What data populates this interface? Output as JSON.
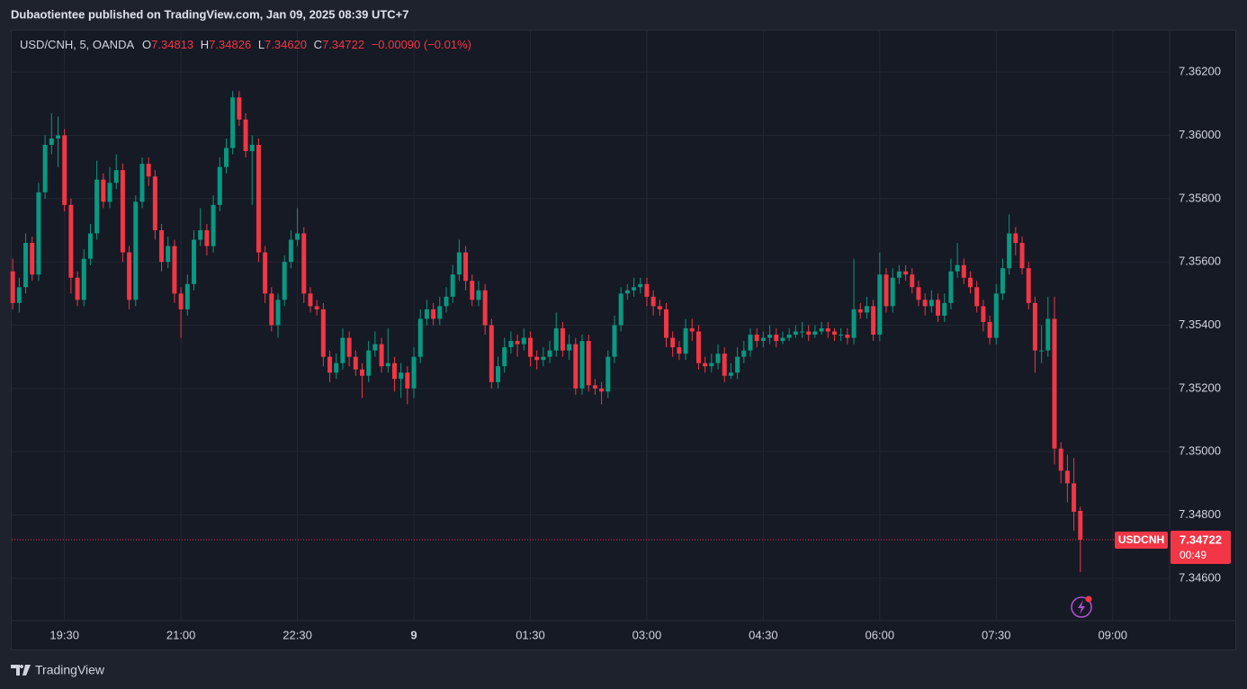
{
  "header": {
    "publisher_line": "Dubaotientee published on TradingView.com, Jan 09, 2025 08:39 UTC+7",
    "symbol": "USD/CNH, 5, OANDA",
    "ohlc_letters": [
      "O",
      "H",
      "L",
      "C"
    ],
    "ohlc_values": [
      "7.34813",
      "7.34826",
      "7.34620",
      "7.34722"
    ],
    "change": "−0.00090 (−0.01%)"
  },
  "price_tag": {
    "symbol": "USDCNH",
    "countdown": "00:49"
  },
  "footer": {
    "brand": "TradingView"
  },
  "chart_data": {
    "type": "candlestick",
    "up_color": "#089981",
    "down_color": "#f23645",
    "grid": true,
    "ylim": [
      7.34466,
      7.36334
    ],
    "yticks": [
      {
        "value": 7.346,
        "label": "7.34600"
      },
      {
        "value": 7.348,
        "label": "7.34800"
      },
      {
        "value": 7.35,
        "label": "7.35000"
      },
      {
        "value": 7.352,
        "label": "7.35200"
      },
      {
        "value": 7.354,
        "label": "7.35400"
      },
      {
        "value": 7.356,
        "label": "7.35600"
      },
      {
        "value": 7.358,
        "label": "7.35800"
      },
      {
        "value": 7.36,
        "label": "7.36000"
      },
      {
        "value": 7.362,
        "label": "7.36200"
      }
    ],
    "xlim": [
      -0.3,
      178.8
    ],
    "xticks": [
      {
        "value": 8,
        "label": "19:30"
      },
      {
        "value": 26,
        "label": "21:00"
      },
      {
        "value": 44,
        "label": "22:30"
      },
      {
        "value": 62,
        "label": "9"
      },
      {
        "value": 80,
        "label": "01:30"
      },
      {
        "value": 98,
        "label": "03:00"
      },
      {
        "value": 116,
        "label": "04:30"
      },
      {
        "value": 134,
        "label": "06:00"
      },
      {
        "value": 152,
        "label": "07:30"
      },
      {
        "value": 170,
        "label": "09:00"
      }
    ],
    "x": [
      0,
      1,
      2,
      3,
      4,
      5,
      6,
      7,
      8,
      9,
      10,
      11,
      12,
      13,
      14,
      15,
      16,
      17,
      18,
      19,
      20,
      21,
      22,
      23,
      24,
      25,
      26,
      27,
      28,
      29,
      30,
      31,
      32,
      33,
      34,
      35,
      36,
      37,
      38,
      39,
      40,
      41,
      42,
      43,
      44,
      45,
      46,
      47,
      48,
      49,
      50,
      51,
      52,
      53,
      54,
      55,
      56,
      57,
      58,
      59,
      60,
      61,
      62,
      63,
      64,
      65,
      66,
      67,
      68,
      69,
      70,
      71,
      72,
      73,
      74,
      75,
      76,
      77,
      78,
      79,
      80,
      81,
      82,
      83,
      84,
      85,
      86,
      87,
      88,
      89,
      90,
      91,
      92,
      93,
      94,
      95,
      96,
      97,
      98,
      99,
      100,
      101,
      102,
      103,
      104,
      105,
      106,
      107,
      108,
      109,
      110,
      111,
      112,
      113,
      114,
      115,
      116,
      117,
      118,
      119,
      120,
      121,
      122,
      123,
      124,
      125,
      126,
      127,
      128,
      129,
      130,
      131,
      132,
      133,
      134,
      135,
      136,
      137,
      138,
      139,
      140,
      141,
      142,
      143,
      144,
      145,
      146,
      147,
      148,
      149,
      150,
      151,
      152,
      153,
      154,
      155,
      156,
      157,
      158,
      159,
      160,
      161,
      162,
      163,
      164,
      165
    ],
    "open": [
      7.3557,
      7.3547,
      7.3552,
      7.3566,
      7.3556,
      7.3582,
      7.3597,
      7.3599,
      7.36,
      7.3578,
      7.3555,
      7.3548,
      7.3561,
      7.3569,
      7.3586,
      7.3579,
      7.3585,
      7.3589,
      7.3563,
      7.3548,
      7.3579,
      7.3591,
      7.3587,
      7.357,
      7.356,
      7.3565,
      7.355,
      7.3545,
      7.3553,
      7.3567,
      7.357,
      7.3565,
      7.3578,
      7.359,
      7.3596,
      7.3612,
      7.3605,
      7.3595,
      7.3597,
      7.3563,
      7.355,
      7.354,
      7.3548,
      7.356,
      7.3567,
      7.3569,
      7.355,
      7.3546,
      7.3545,
      7.353,
      7.3525,
      7.3528,
      7.3536,
      7.353,
      7.3526,
      7.3524,
      7.3532,
      7.3534,
      7.3527,
      7.3528,
      7.3523,
      7.3525,
      7.352,
      7.353,
      7.3542,
      7.3545,
      7.3542,
      7.3546,
      7.3549,
      7.3556,
      7.3563,
      7.3554,
      7.3548,
      7.3551,
      7.354,
      7.3522,
      7.3527,
      7.3533,
      7.3535,
      7.3534,
      7.3536,
      7.353,
      7.3529,
      7.353,
      7.3532,
      7.3539,
      7.3532,
      7.3534,
      7.352,
      7.3535,
      7.3521,
      7.352,
      7.3519,
      7.353,
      7.354,
      7.355,
      7.3551,
      7.3552,
      7.3553,
      7.3549,
      7.3546,
      7.3545,
      7.3536,
      7.3533,
      7.3531,
      7.3539,
      7.3538,
      7.3528,
      7.3527,
      7.3528,
      7.3531,
      7.3524,
      7.3525,
      7.353,
      7.3532,
      7.3537,
      7.3535,
      7.3536,
      7.3537,
      7.3535,
      7.3536,
      7.3537,
      7.3538,
      7.3538,
      7.3537,
      7.3538,
      7.3539,
      7.3538,
      7.3537,
      7.3537,
      7.3536,
      7.3545,
      7.3544,
      7.3546,
      7.3537,
      7.3556,
      7.3546,
      7.3555,
      7.3557,
      7.3556,
      7.3552,
      7.3548,
      7.3546,
      7.3548,
      7.3543,
      7.3547,
      7.3557,
      7.3559,
      7.3555,
      7.3552,
      7.3546,
      7.3541,
      7.3536,
      7.355,
      7.3558,
      7.3569,
      7.3566,
      7.3558,
      7.3547,
      7.3532,
      7.3532,
      7.3542,
      7.3501,
      7.3494,
      7.349,
      7.34813
    ],
    "high": [
      7.3561,
      7.3555,
      7.3569,
      7.3568,
      7.3585,
      7.36,
      7.3607,
      7.3606,
      7.3602,
      7.358,
      7.3557,
      7.3564,
      7.3572,
      7.3592,
      7.3588,
      7.359,
      7.3594,
      7.3591,
      7.3565,
      7.3581,
      7.3593,
      7.3593,
      7.3589,
      7.3572,
      7.3568,
      7.3567,
      7.3552,
      7.3556,
      7.357,
      7.3577,
      7.3572,
      7.3581,
      7.3593,
      7.3599,
      7.3614,
      7.3614,
      7.3607,
      7.36,
      7.3599,
      7.3565,
      7.3552,
      7.355,
      7.3562,
      7.357,
      7.3577,
      7.3571,
      7.3552,
      7.3548,
      7.3547,
      7.3532,
      7.3531,
      7.3539,
      7.3538,
      7.3532,
      7.3528,
      7.3535,
      7.3538,
      7.3536,
      7.3539,
      7.353,
      7.3528,
      7.3527,
      7.3533,
      7.3545,
      7.3548,
      7.3547,
      7.3549,
      7.3552,
      7.3559,
      7.3567,
      7.3565,
      7.3556,
      7.3554,
      7.3553,
      7.3542,
      7.353,
      7.3536,
      7.3538,
      7.3537,
      7.3539,
      7.3538,
      7.3532,
      7.3533,
      7.3535,
      7.3544,
      7.3541,
      7.3537,
      7.3536,
      7.3537,
      7.3537,
      7.3523,
      7.3522,
      7.3532,
      7.3543,
      7.3552,
      7.3553,
      7.3555,
      7.3555,
      7.3555,
      7.3551,
      7.3548,
      7.3547,
      7.3538,
      7.3535,
      7.3542,
      7.3542,
      7.354,
      7.353,
      7.3531,
      7.3534,
      7.3533,
      7.3528,
      7.3533,
      7.3535,
      7.3539,
      7.3539,
      7.3538,
      7.354,
      7.3539,
      7.3538,
      7.3539,
      7.354,
      7.3541,
      7.354,
      7.354,
      7.3541,
      7.3541,
      7.3539,
      7.3539,
      7.3539,
      7.3561,
      7.3547,
      7.3549,
      7.3548,
      7.3563,
      7.3558,
      7.3558,
      7.3559,
      7.3559,
      7.3558,
      7.3554,
      7.355,
      7.3551,
      7.355,
      7.355,
      7.3561,
      7.3566,
      7.3561,
      7.3557,
      7.3554,
      7.3548,
      7.3543,
      7.3553,
      7.3561,
      7.3575,
      7.3571,
      7.3568,
      7.356,
      7.3549,
      7.354,
      7.3549,
      7.3549,
      7.3503,
      7.3499,
      7.3498,
      7.34826
    ],
    "low": [
      7.3545,
      7.3544,
      7.355,
      7.3554,
      7.3554,
      7.358,
      7.3594,
      7.359,
      7.3576,
      7.355,
      7.3546,
      7.3546,
      7.3559,
      7.3567,
      7.3577,
      7.3577,
      7.3583,
      7.356,
      7.3545,
      7.3546,
      7.3577,
      7.3584,
      7.3567,
      7.3557,
      7.3558,
      7.3547,
      7.3536,
      7.3543,
      7.3551,
      7.3565,
      7.3562,
      7.3563,
      7.3576,
      7.3588,
      7.3594,
      7.3603,
      7.3593,
      7.3578,
      7.356,
      7.3547,
      7.3538,
      7.3536,
      7.3546,
      7.3558,
      7.3565,
      7.3547,
      7.3544,
      7.3543,
      7.3527,
      7.3522,
      7.3523,
      7.3526,
      7.3527,
      7.3524,
      7.3517,
      7.3522,
      7.353,
      7.3525,
      7.3525,
      7.3519,
      7.3517,
      7.3515,
      7.3517,
      7.3528,
      7.354,
      7.354,
      7.354,
      7.3544,
      7.3547,
      7.3554,
      7.3551,
      7.3546,
      7.3546,
      7.3537,
      7.352,
      7.352,
      7.3525,
      7.3531,
      7.353,
      7.3532,
      7.3527,
      7.3526,
      7.3527,
      7.3528,
      7.353,
      7.353,
      7.3529,
      7.3518,
      7.3518,
      7.3519,
      7.3518,
      7.3515,
      7.3517,
      7.3528,
      7.3538,
      7.3548,
      7.3549,
      7.355,
      7.3546,
      7.3543,
      7.3543,
      7.3533,
      7.353,
      7.3529,
      7.3529,
      7.3535,
      7.3526,
      7.3525,
      7.3525,
      7.3526,
      7.3522,
      7.3523,
      7.3523,
      7.3528,
      7.353,
      7.3533,
      7.3533,
      7.3534,
      7.3533,
      7.3534,
      7.3535,
      7.3536,
      7.3536,
      7.3535,
      7.3536,
      7.3537,
      7.3536,
      7.3535,
      7.3535,
      7.3534,
      7.3534,
      7.3542,
      7.3542,
      7.3535,
      7.3535,
      7.3544,
      7.3544,
      7.3553,
      7.3554,
      7.355,
      7.3546,
      7.3543,
      7.3544,
      7.3541,
      7.3541,
      7.3545,
      7.3555,
      7.3553,
      7.355,
      7.3544,
      7.3538,
      7.3534,
      7.3534,
      7.3548,
      7.3556,
      7.3562,
      7.3556,
      7.3545,
      7.3525,
      7.3528,
      7.353,
      7.3496,
      7.349,
      7.3484,
      7.3475,
      7.3462
    ],
    "close": [
      7.3547,
      7.3552,
      7.3566,
      7.3556,
      7.3582,
      7.3597,
      7.3599,
      7.36,
      7.3578,
      7.3555,
      7.3548,
      7.3561,
      7.3569,
      7.3586,
      7.3579,
      7.3585,
      7.3589,
      7.3563,
      7.3548,
      7.3579,
      7.3591,
      7.3587,
      7.357,
      7.356,
      7.3565,
      7.355,
      7.3545,
      7.3553,
      7.3567,
      7.357,
      7.3565,
      7.3578,
      7.359,
      7.3596,
      7.3612,
      7.3605,
      7.3595,
      7.3597,
      7.3563,
      7.355,
      7.354,
      7.3548,
      7.356,
      7.3567,
      7.3569,
      7.355,
      7.3546,
      7.3545,
      7.353,
      7.3525,
      7.3528,
      7.3536,
      7.353,
      7.3526,
      7.3524,
      7.3532,
      7.3534,
      7.3527,
      7.3528,
      7.3523,
      7.3525,
      7.352,
      7.353,
      7.3542,
      7.3545,
      7.3542,
      7.3546,
      7.3549,
      7.3556,
      7.3563,
      7.3554,
      7.3548,
      7.3551,
      7.354,
      7.3522,
      7.3527,
      7.3533,
      7.3535,
      7.3534,
      7.3536,
      7.353,
      7.3529,
      7.353,
      7.3532,
      7.3539,
      7.3532,
      7.3534,
      7.352,
      7.3535,
      7.3521,
      7.352,
      7.3519,
      7.353,
      7.354,
      7.355,
      7.3551,
      7.3552,
      7.3553,
      7.3549,
      7.3546,
      7.3545,
      7.3536,
      7.3533,
      7.3531,
      7.3539,
      7.3538,
      7.3528,
      7.3527,
      7.3528,
      7.3531,
      7.3524,
      7.3525,
      7.353,
      7.3532,
      7.3537,
      7.3535,
      7.3536,
      7.3537,
      7.3535,
      7.3536,
      7.3537,
      7.3538,
      7.3538,
      7.3537,
      7.3538,
      7.3539,
      7.3538,
      7.3537,
      7.3537,
      7.3536,
      7.3545,
      7.3544,
      7.3546,
      7.3537,
      7.3556,
      7.3546,
      7.3555,
      7.3557,
      7.3556,
      7.3552,
      7.3548,
      7.3546,
      7.3548,
      7.3543,
      7.3547,
      7.3557,
      7.3559,
      7.3555,
      7.3552,
      7.3546,
      7.3541,
      7.3536,
      7.355,
      7.3558,
      7.3569,
      7.3566,
      7.3558,
      7.3547,
      7.3532,
      7.3532,
      7.3542,
      7.3501,
      7.3494,
      7.349,
      7.3481,
      7.34722
    ]
  }
}
